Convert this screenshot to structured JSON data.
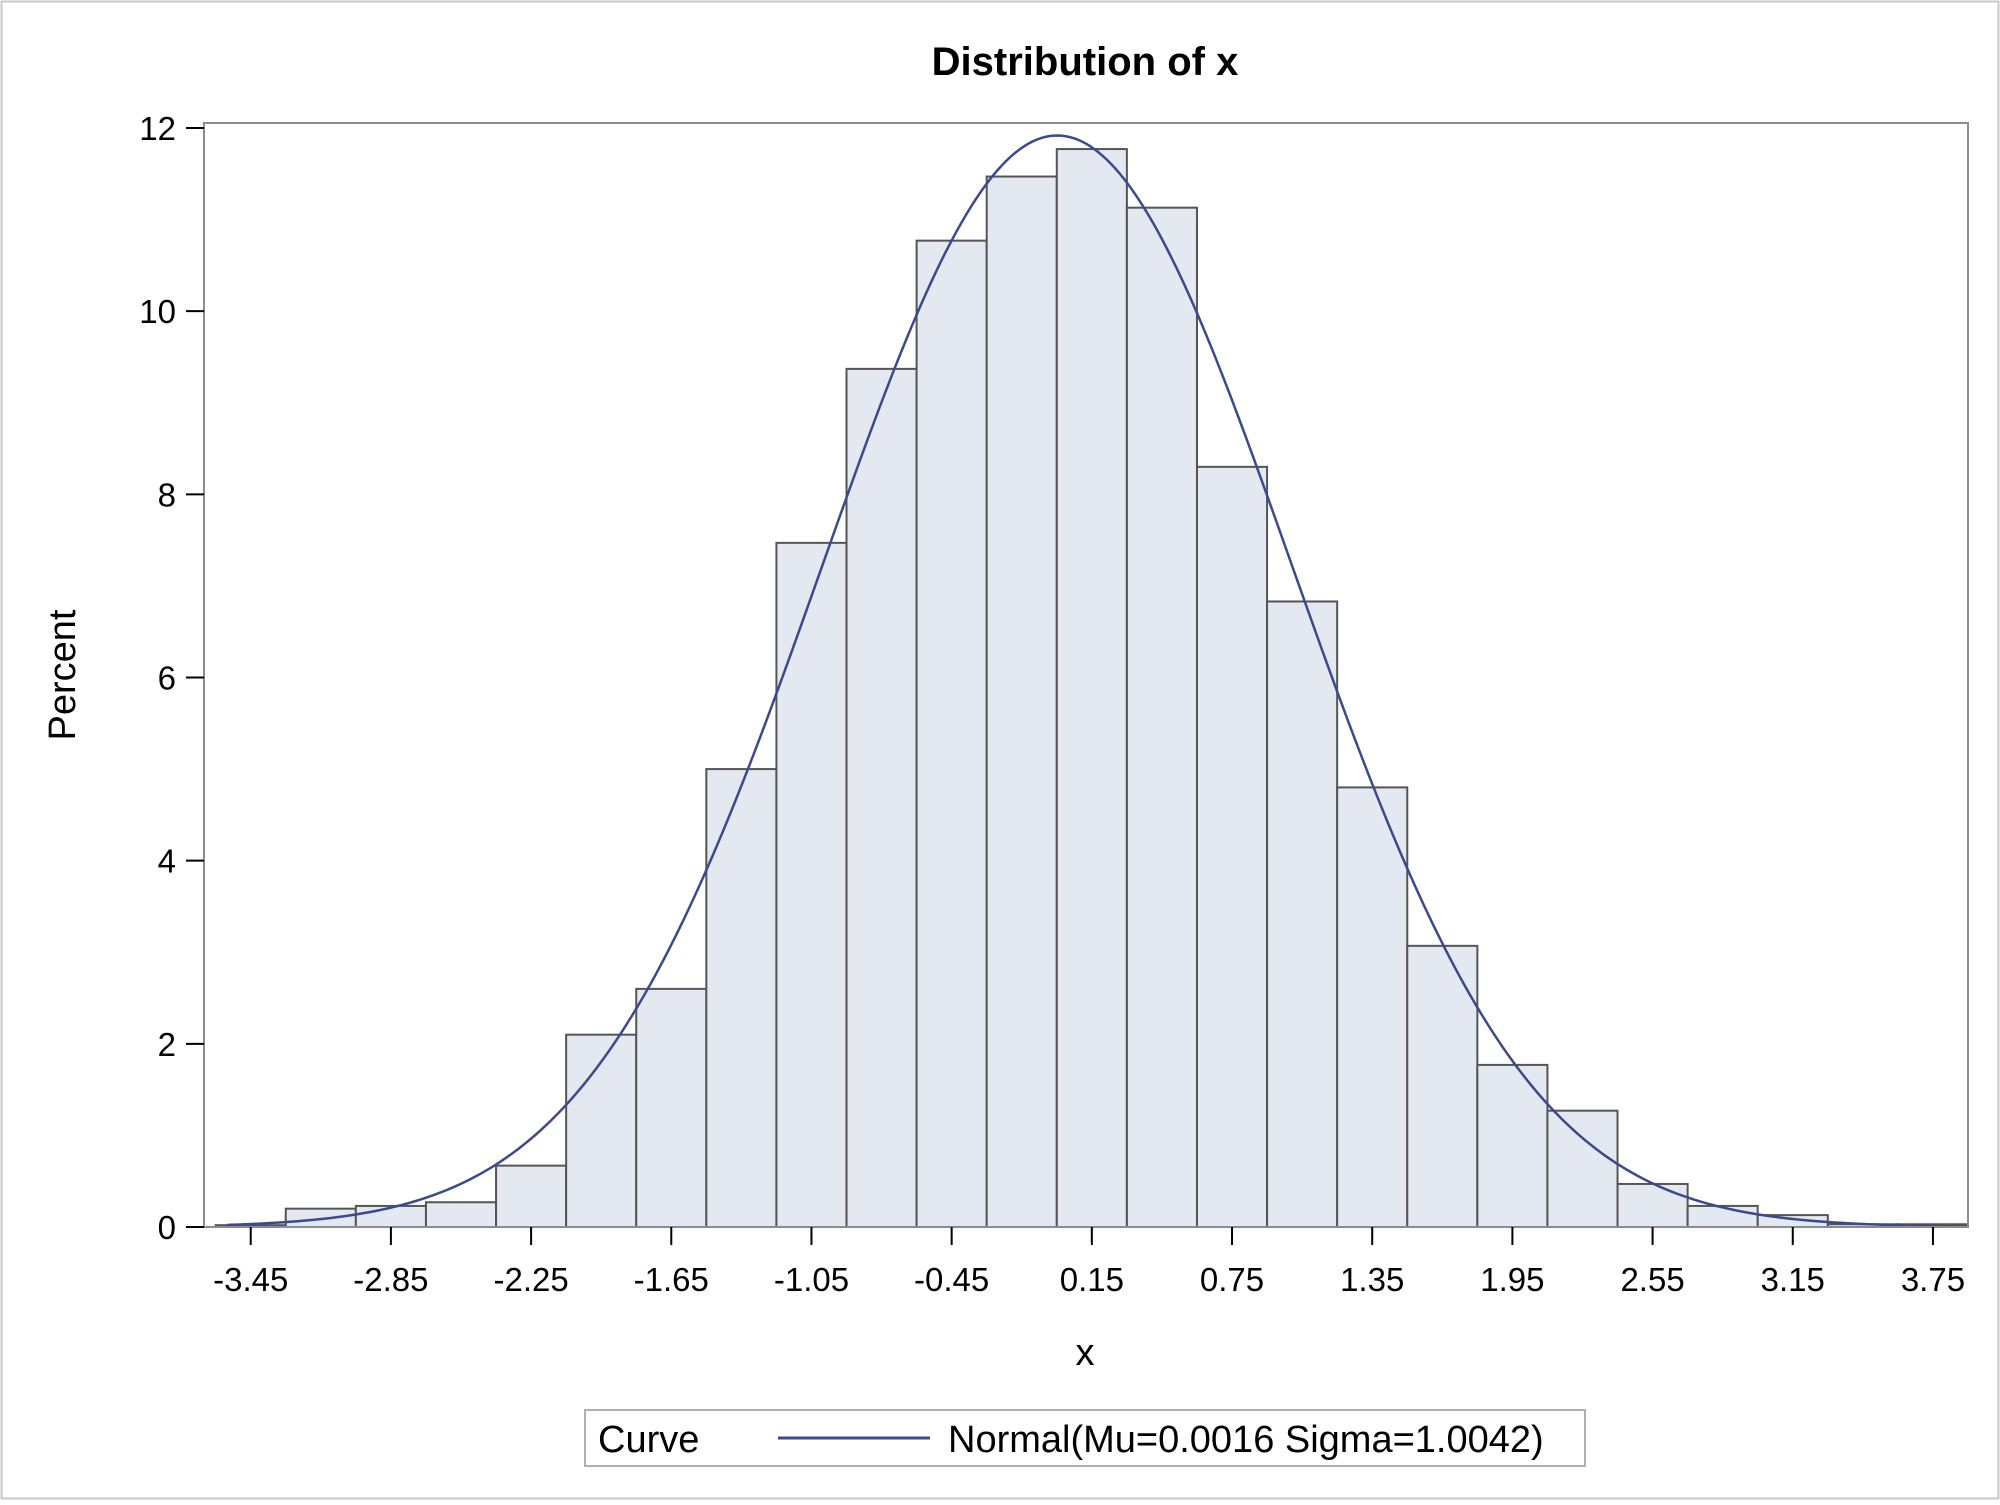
{
  "chart_data": {
    "type": "bar",
    "subtype": "histogram",
    "title": "Distribution of x",
    "xlabel": "x",
    "ylabel": "Percent",
    "x_ticks": [
      "-3.45",
      "-2.85",
      "-2.25",
      "-1.65",
      "-1.05",
      "-0.45",
      "0.15",
      "0.75",
      "1.35",
      "1.95",
      "2.55",
      "3.15",
      "3.75"
    ],
    "y_ticks": [
      "0",
      "2",
      "4",
      "6",
      "8",
      "10",
      "12"
    ],
    "xlim": [
      -3.65,
      3.9
    ],
    "ylim": [
      0,
      12
    ],
    "bin_width": 0.3,
    "bin_midpoints": [
      -3.45,
      -3.15,
      -2.85,
      -2.55,
      -2.25,
      -1.95,
      -1.65,
      -1.35,
      -1.05,
      -0.75,
      -0.45,
      -0.15,
      0.15,
      0.45,
      0.75,
      1.05,
      1.35,
      1.65,
      1.95,
      2.25,
      2.55,
      2.85,
      3.15,
      3.45,
      3.75
    ],
    "values": [
      0.02,
      0.2,
      0.23,
      0.27,
      0.67,
      2.1,
      2.6,
      5.0,
      7.47,
      9.37,
      10.77,
      11.47,
      11.77,
      11.13,
      8.3,
      6.83,
      4.8,
      3.07,
      1.77,
      1.27,
      0.47,
      0.23,
      0.13,
      0.03,
      0.03
    ],
    "curve": {
      "type": "normal",
      "mu": 0.0016,
      "sigma": 1.0042
    },
    "legend": {
      "title": "Curve",
      "label": "Normal(Mu=0.0016 Sigma=1.0042)",
      "position": "bottom"
    },
    "colors": {
      "bar_fill": "#e3e8f1",
      "bar_stroke": "#555555",
      "curve": "#3b4a8c",
      "frame": "#8c8c8c"
    }
  }
}
